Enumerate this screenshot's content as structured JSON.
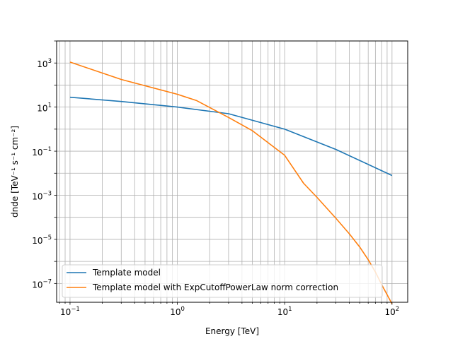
{
  "chart_data": {
    "type": "line",
    "xlabel": "Energy [TeV]",
    "ylabel": "dnde [TeV⁻¹ s⁻¹ cm⁻²]",
    "xscale": "log",
    "yscale": "log",
    "xlim": [
      0.075,
      140
    ],
    "ylim": [
      1.4e-08,
      10000.0
    ],
    "grid": "major and minor",
    "legend_placement": "lower-left",
    "x_tick_labels": [
      {
        "value": 0.1,
        "mant": "10",
        "exp": "−1"
      },
      {
        "value": 1,
        "mant": "10",
        "exp": "0"
      },
      {
        "value": 10,
        "mant": "10",
        "exp": "1"
      },
      {
        "value": 100,
        "mant": "10",
        "exp": "2"
      }
    ],
    "y_tick_labels": [
      {
        "value": 1e-07,
        "mant": "10",
        "exp": "−7"
      },
      {
        "value": 1e-05,
        "mant": "10",
        "exp": "−5"
      },
      {
        "value": 0.001,
        "mant": "10",
        "exp": "−3"
      },
      {
        "value": 0.1,
        "mant": "10",
        "exp": "−1"
      },
      {
        "value": 10,
        "mant": "10",
        "exp": "1"
      },
      {
        "value": 1000,
        "mant": "10",
        "exp": "3"
      }
    ],
    "series": [
      {
        "name": "Template model",
        "color": "#1f77b4",
        "x": [
          0.1,
          0.3,
          1,
          3,
          10,
          30,
          100
        ],
        "y": [
          28,
          18,
          10,
          5,
          1,
          0.12,
          0.0079
        ]
      },
      {
        "name": "Template model with ExpCutoffPowerLaw norm correction",
        "color": "#ff7f0e",
        "x": [
          0.1,
          0.3,
          1,
          1.5,
          3,
          5,
          10,
          15,
          20,
          30,
          40,
          50,
          60,
          70,
          80,
          100
        ],
        "y": [
          1100,
          180,
          38,
          20,
          3.4,
          0.85,
          0.065,
          0.0035,
          0.0008,
          9e-05,
          1.8e-05,
          4.5e-06,
          1.2e-06,
          3.3e-07,
          9e-08,
          1.2e-08
        ]
      }
    ]
  }
}
